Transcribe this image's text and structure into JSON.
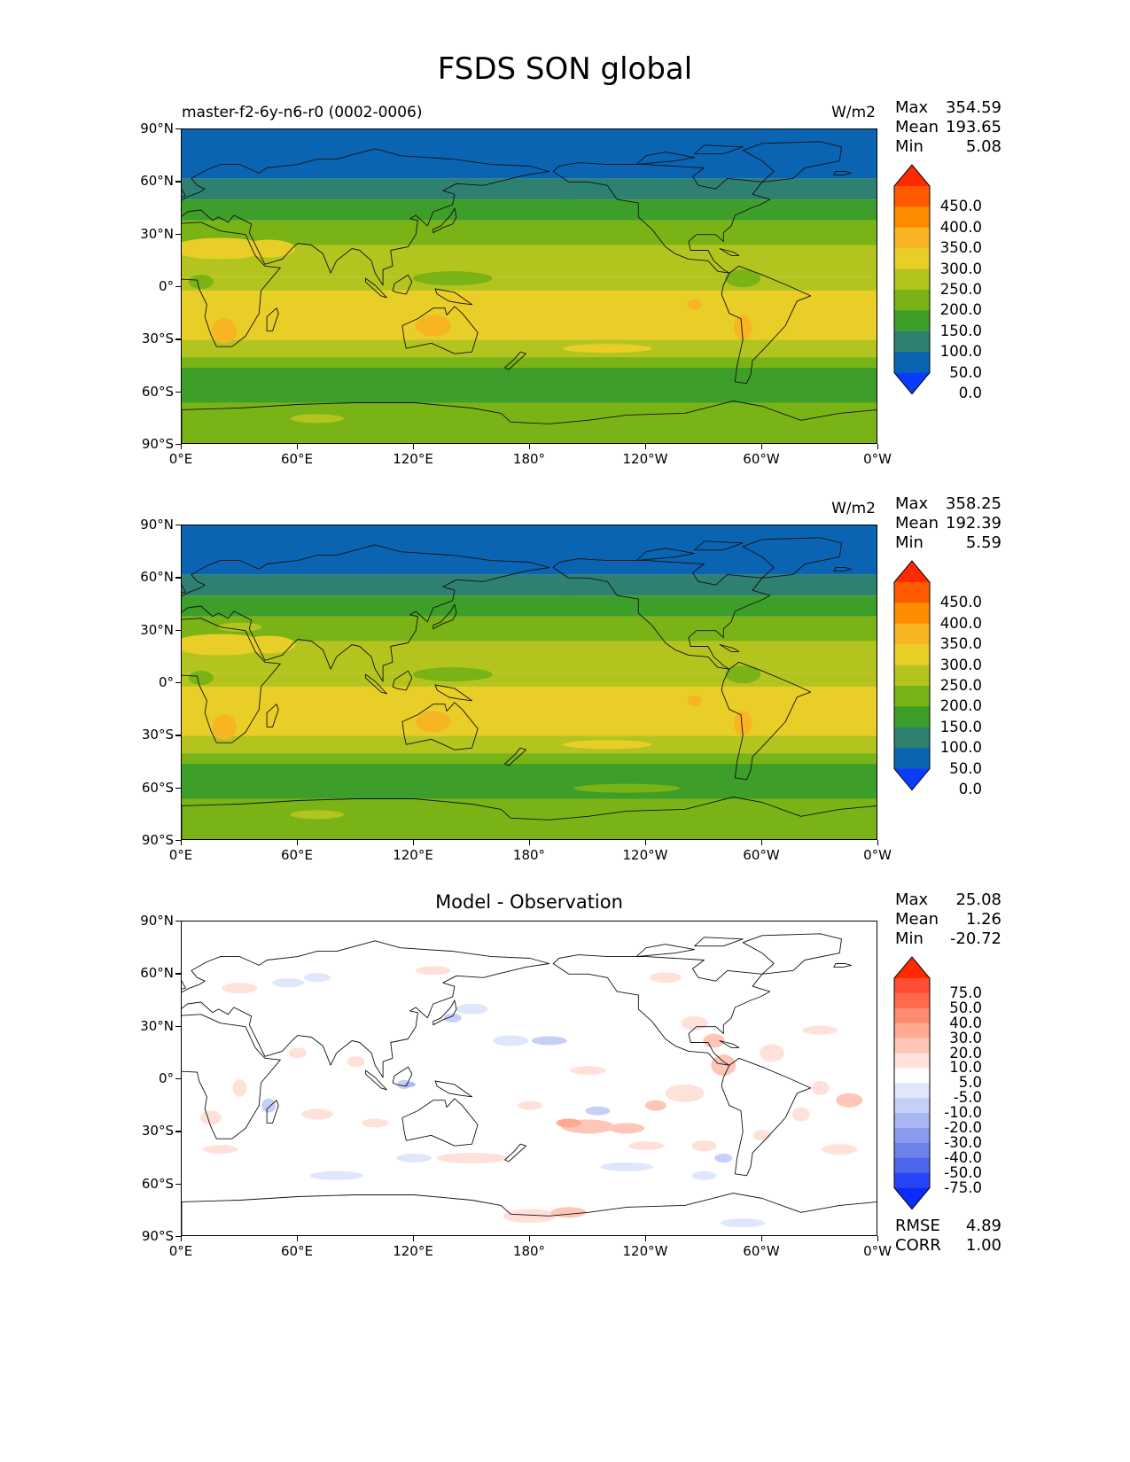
{
  "title": "FSDS SON global",
  "x_ticks": [
    "0°E",
    "60°E",
    "120°E",
    "180°",
    "120°W",
    "60°W",
    "0°W"
  ],
  "y_ticks": [
    "90°N",
    "60°N",
    "30°N",
    "0°",
    "30°S",
    "60°S",
    "90°S"
  ],
  "panels": [
    {
      "name": "model",
      "title_left": "master-f2-6y-n6-r0 (0002-0006)",
      "title_center": "",
      "units": "W/m2",
      "stats": {
        "max_label": "Max",
        "max": "354.59",
        "mean_label": "Mean",
        "mean": "193.65",
        "min_label": "Min",
        "min": "5.08"
      },
      "colorbar": {
        "labels": [
          "450.0",
          "400.0",
          "350.0",
          "300.0",
          "250.0",
          "200.0",
          "150.0",
          "100.0",
          "50.0",
          "0.0"
        ],
        "colors": [
          "#ff2a00",
          "#ff5a00",
          "#ff8c00",
          "#f7b423",
          "#e8ce26",
          "#b4c41f",
          "#7ab316",
          "#3e9e2a",
          "#2e8070",
          "#0a64b2",
          "#0a3cff"
        ]
      }
    },
    {
      "name": "observation",
      "title_left": "",
      "title_center": "",
      "units": "W/m2",
      "stats": {
        "max_label": "Max",
        "max": "358.25",
        "mean_label": "Mean",
        "mean": "192.39",
        "min_label": "Min",
        "min": "5.59"
      },
      "colorbar": {
        "labels": [
          "450.0",
          "400.0",
          "350.0",
          "300.0",
          "250.0",
          "200.0",
          "150.0",
          "100.0",
          "50.0",
          "0.0"
        ],
        "colors": [
          "#ff2a00",
          "#ff5a00",
          "#ff8c00",
          "#f7b423",
          "#e8ce26",
          "#b4c41f",
          "#7ab316",
          "#3e9e2a",
          "#2e8070",
          "#0a64b2",
          "#0a3cff"
        ]
      }
    },
    {
      "name": "difference",
      "title_left": "",
      "title_center": "Model - Observation",
      "units": "",
      "stats": {
        "max_label": "Max",
        "max": "25.08",
        "mean_label": "Mean",
        "mean": "1.26",
        "min_label": "Min",
        "min": "-20.72"
      },
      "colorbar": {
        "labels": [
          "75.0",
          "50.0",
          "40.0",
          "30.0",
          "20.0",
          "10.0",
          "5.0",
          "-5.0",
          "-10.0",
          "-20.0",
          "-30.0",
          "-40.0",
          "-50.0",
          "-75.0"
        ],
        "colors": [
          "#ff2a00",
          "#ff4e33",
          "#ff6a4d",
          "#ff8a70",
          "#ffa892",
          "#ffc6b8",
          "#ffe1da",
          "#ffffff",
          "#e0e6fb",
          "#c6d0f7",
          "#a8b6f2",
          "#8b9bee",
          "#6c82ea",
          "#4d66ea",
          "#2744f5",
          "#0a2cff"
        ]
      },
      "metrics": {
        "rmse_label": "RMSE",
        "rmse": "4.89",
        "corr_label": "CORR",
        "corr": "1.00"
      }
    }
  ]
}
